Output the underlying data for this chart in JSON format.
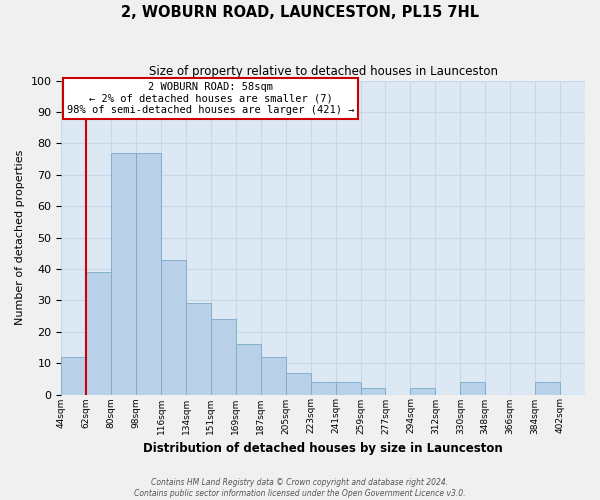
{
  "title": "2, WOBURN ROAD, LAUNCESTON, PL15 7HL",
  "subtitle": "Size of property relative to detached houses in Launceston",
  "xlabel": "Distribution of detached houses by size in Launceston",
  "ylabel": "Number of detached properties",
  "bin_labels": [
    "44sqm",
    "62sqm",
    "80sqm",
    "98sqm",
    "116sqm",
    "134sqm",
    "151sqm",
    "169sqm",
    "187sqm",
    "205sqm",
    "223sqm",
    "241sqm",
    "259sqm",
    "277sqm",
    "294sqm",
    "312sqm",
    "330sqm",
    "348sqm",
    "366sqm",
    "384sqm",
    "402sqm"
  ],
  "bar_heights": [
    12,
    39,
    77,
    77,
    43,
    29,
    24,
    16,
    12,
    7,
    4,
    4,
    2,
    0,
    2,
    0,
    4,
    0,
    0,
    4,
    0
  ],
  "bar_color": "#b8d0e8",
  "bar_edge_color": "#7aaac8",
  "grid_color": "#c8d8e8",
  "background_color": "#dce8f4",
  "annotation_box_text": "2 WOBURN ROAD: 58sqm\n← 2% of detached houses are smaller (7)\n98% of semi-detached houses are larger (421) →",
  "annotation_box_color": "#ffffff",
  "annotation_box_edge_color": "#cc0000",
  "property_line_color": "#cc0000",
  "property_line_x": 1,
  "ylim": [
    0,
    100
  ],
  "yticks": [
    0,
    10,
    20,
    30,
    40,
    50,
    60,
    70,
    80,
    90,
    100
  ],
  "footer_line1": "Contains HM Land Registry data © Crown copyright and database right 2024.",
  "footer_line2": "Contains public sector information licensed under the Open Government Licence v3.0."
}
